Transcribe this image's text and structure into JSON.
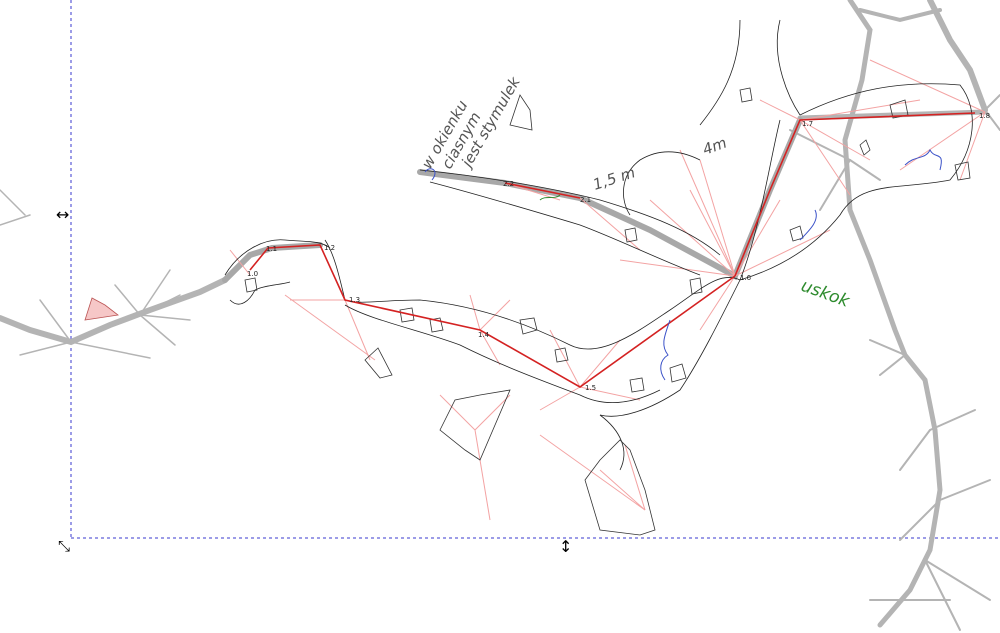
{
  "canvas": {
    "background": "#ffffff",
    "page_border_color": "#3a3acf",
    "survey_leg_color": "#d42222",
    "splay_color": "#f3a3a3",
    "background_survey_color": "#b4b4b4",
    "wall_color": "#222222",
    "annotation_blue": "#3b52c8",
    "annotation_green": "#2e8b2e"
  },
  "annotations": {
    "note_1": "w okienku",
    "note_2": "ciasnym",
    "note_3": "jest stymulek",
    "width_note": "1,5 m",
    "ledge_note": "uskok",
    "height_note": "4m"
  },
  "stations": [
    {
      "id": "s1_0",
      "label": "1.0"
    },
    {
      "id": "s1_1",
      "label": "1.1"
    },
    {
      "id": "s1_2",
      "label": "1.2"
    },
    {
      "id": "s1_3",
      "label": "1.3"
    },
    {
      "id": "s1_4",
      "label": "1.4"
    },
    {
      "id": "s1_5",
      "label": "1.5"
    },
    {
      "id": "s1_6",
      "label": "1.6"
    },
    {
      "id": "s1_7",
      "label": "1.7"
    },
    {
      "id": "s1_8",
      "label": "1.8"
    },
    {
      "id": "s2_1",
      "label": "2.1"
    },
    {
      "id": "s2_2",
      "label": "2.2"
    }
  ],
  "handles": {
    "left_arrow": "↔",
    "bottom_arrow": "↕",
    "corner_arrow": "⤡"
  }
}
